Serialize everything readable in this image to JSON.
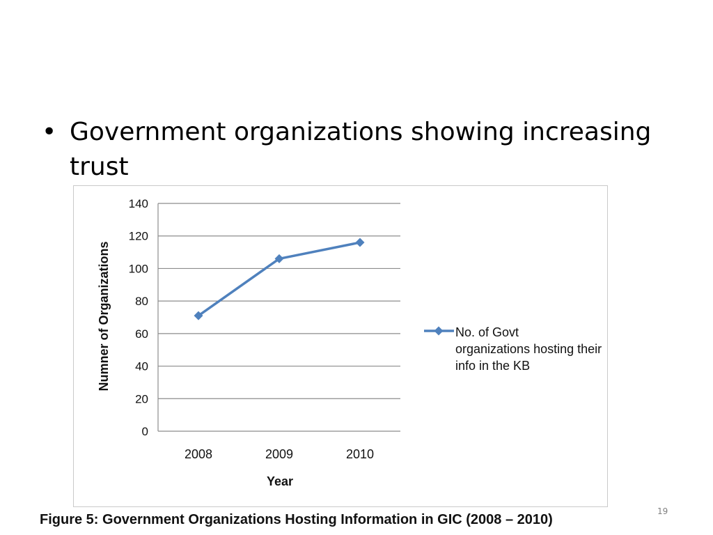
{
  "slide": {
    "bullet_text": "Government organizations showing increasing trust",
    "caption": "Figure 5: Government Organizations Hosting Information in GIC (2008 – 2010)",
    "page_number": "19",
    "bullet_icon": "bullet-dot-icon"
  },
  "chart_data": {
    "type": "line",
    "title": "",
    "xlabel": "Year",
    "ylabel": "Numner of Organizations",
    "categories": [
      "2008",
      "2009",
      "2010"
    ],
    "series": [
      {
        "name": "No. of Govt organizations hosting their info in the KB",
        "values": [
          71,
          106,
          116
        ],
        "color": "#4f81bd",
        "marker": "diamond"
      }
    ],
    "ylim": [
      0,
      140
    ],
    "yticks": [
      "0",
      "20",
      "40",
      "60",
      "80",
      "100",
      "120",
      "140"
    ],
    "grid": true,
    "legend": "right"
  }
}
